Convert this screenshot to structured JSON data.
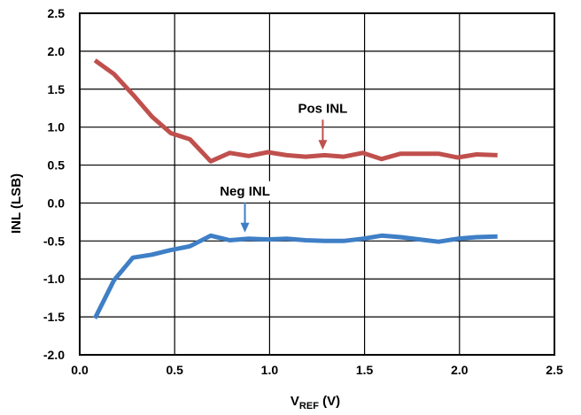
{
  "chart_data": {
    "type": "line",
    "xlabel_main": "V",
    "xlabel_sub": "REF",
    "xlabel_unit": " (V)",
    "ylabel": "INL (LSB)",
    "xlim": [
      0,
      2.5
    ],
    "ylim": [
      -2.0,
      2.5
    ],
    "xticks": [
      "0.0",
      "0.5",
      "1.0",
      "1.5",
      "2.0",
      "2.5"
    ],
    "yticks": [
      "2.5",
      "2.0",
      "1.5",
      "1.0",
      "0.5",
      "0.0",
      "-0.5",
      "-1.0",
      "-1.5",
      "-2.0"
    ],
    "grid": true,
    "series": [
      {
        "name": "Pos INL",
        "color": "#c0504d",
        "x": [
          0.08,
          0.18,
          0.28,
          0.38,
          0.48,
          0.58,
          0.69,
          0.79,
          0.89,
          0.99,
          1.09,
          1.19,
          1.29,
          1.39,
          1.49,
          1.59,
          1.69,
          1.79,
          1.89,
          1.99,
          2.09,
          2.2
        ],
        "values": [
          1.88,
          1.7,
          1.43,
          1.14,
          0.92,
          0.84,
          0.55,
          0.66,
          0.62,
          0.67,
          0.63,
          0.61,
          0.63,
          0.61,
          0.66,
          0.58,
          0.65,
          0.65,
          0.65,
          0.6,
          0.64,
          0.63
        ]
      },
      {
        "name": "Neg INL",
        "color": "#3f7fc6",
        "x": [
          0.08,
          0.18,
          0.28,
          0.38,
          0.48,
          0.58,
          0.69,
          0.79,
          0.89,
          0.99,
          1.09,
          1.19,
          1.29,
          1.39,
          1.49,
          1.59,
          1.69,
          1.79,
          1.89,
          1.99,
          2.09,
          2.2
        ],
        "values": [
          -1.52,
          -1.02,
          -0.72,
          -0.68,
          -0.62,
          -0.57,
          -0.43,
          -0.49,
          -0.47,
          -0.48,
          -0.47,
          -0.49,
          -0.5,
          -0.5,
          -0.47,
          -0.43,
          -0.45,
          -0.48,
          -0.51,
          -0.47,
          -0.45,
          -0.44
        ]
      }
    ],
    "annotations": [
      {
        "text": "Pos INL",
        "points_to_x": 1.28,
        "points_to_y": 0.62
      },
      {
        "text": "Neg INL",
        "points_to_x": 0.87,
        "points_to_y": -0.47
      }
    ]
  }
}
